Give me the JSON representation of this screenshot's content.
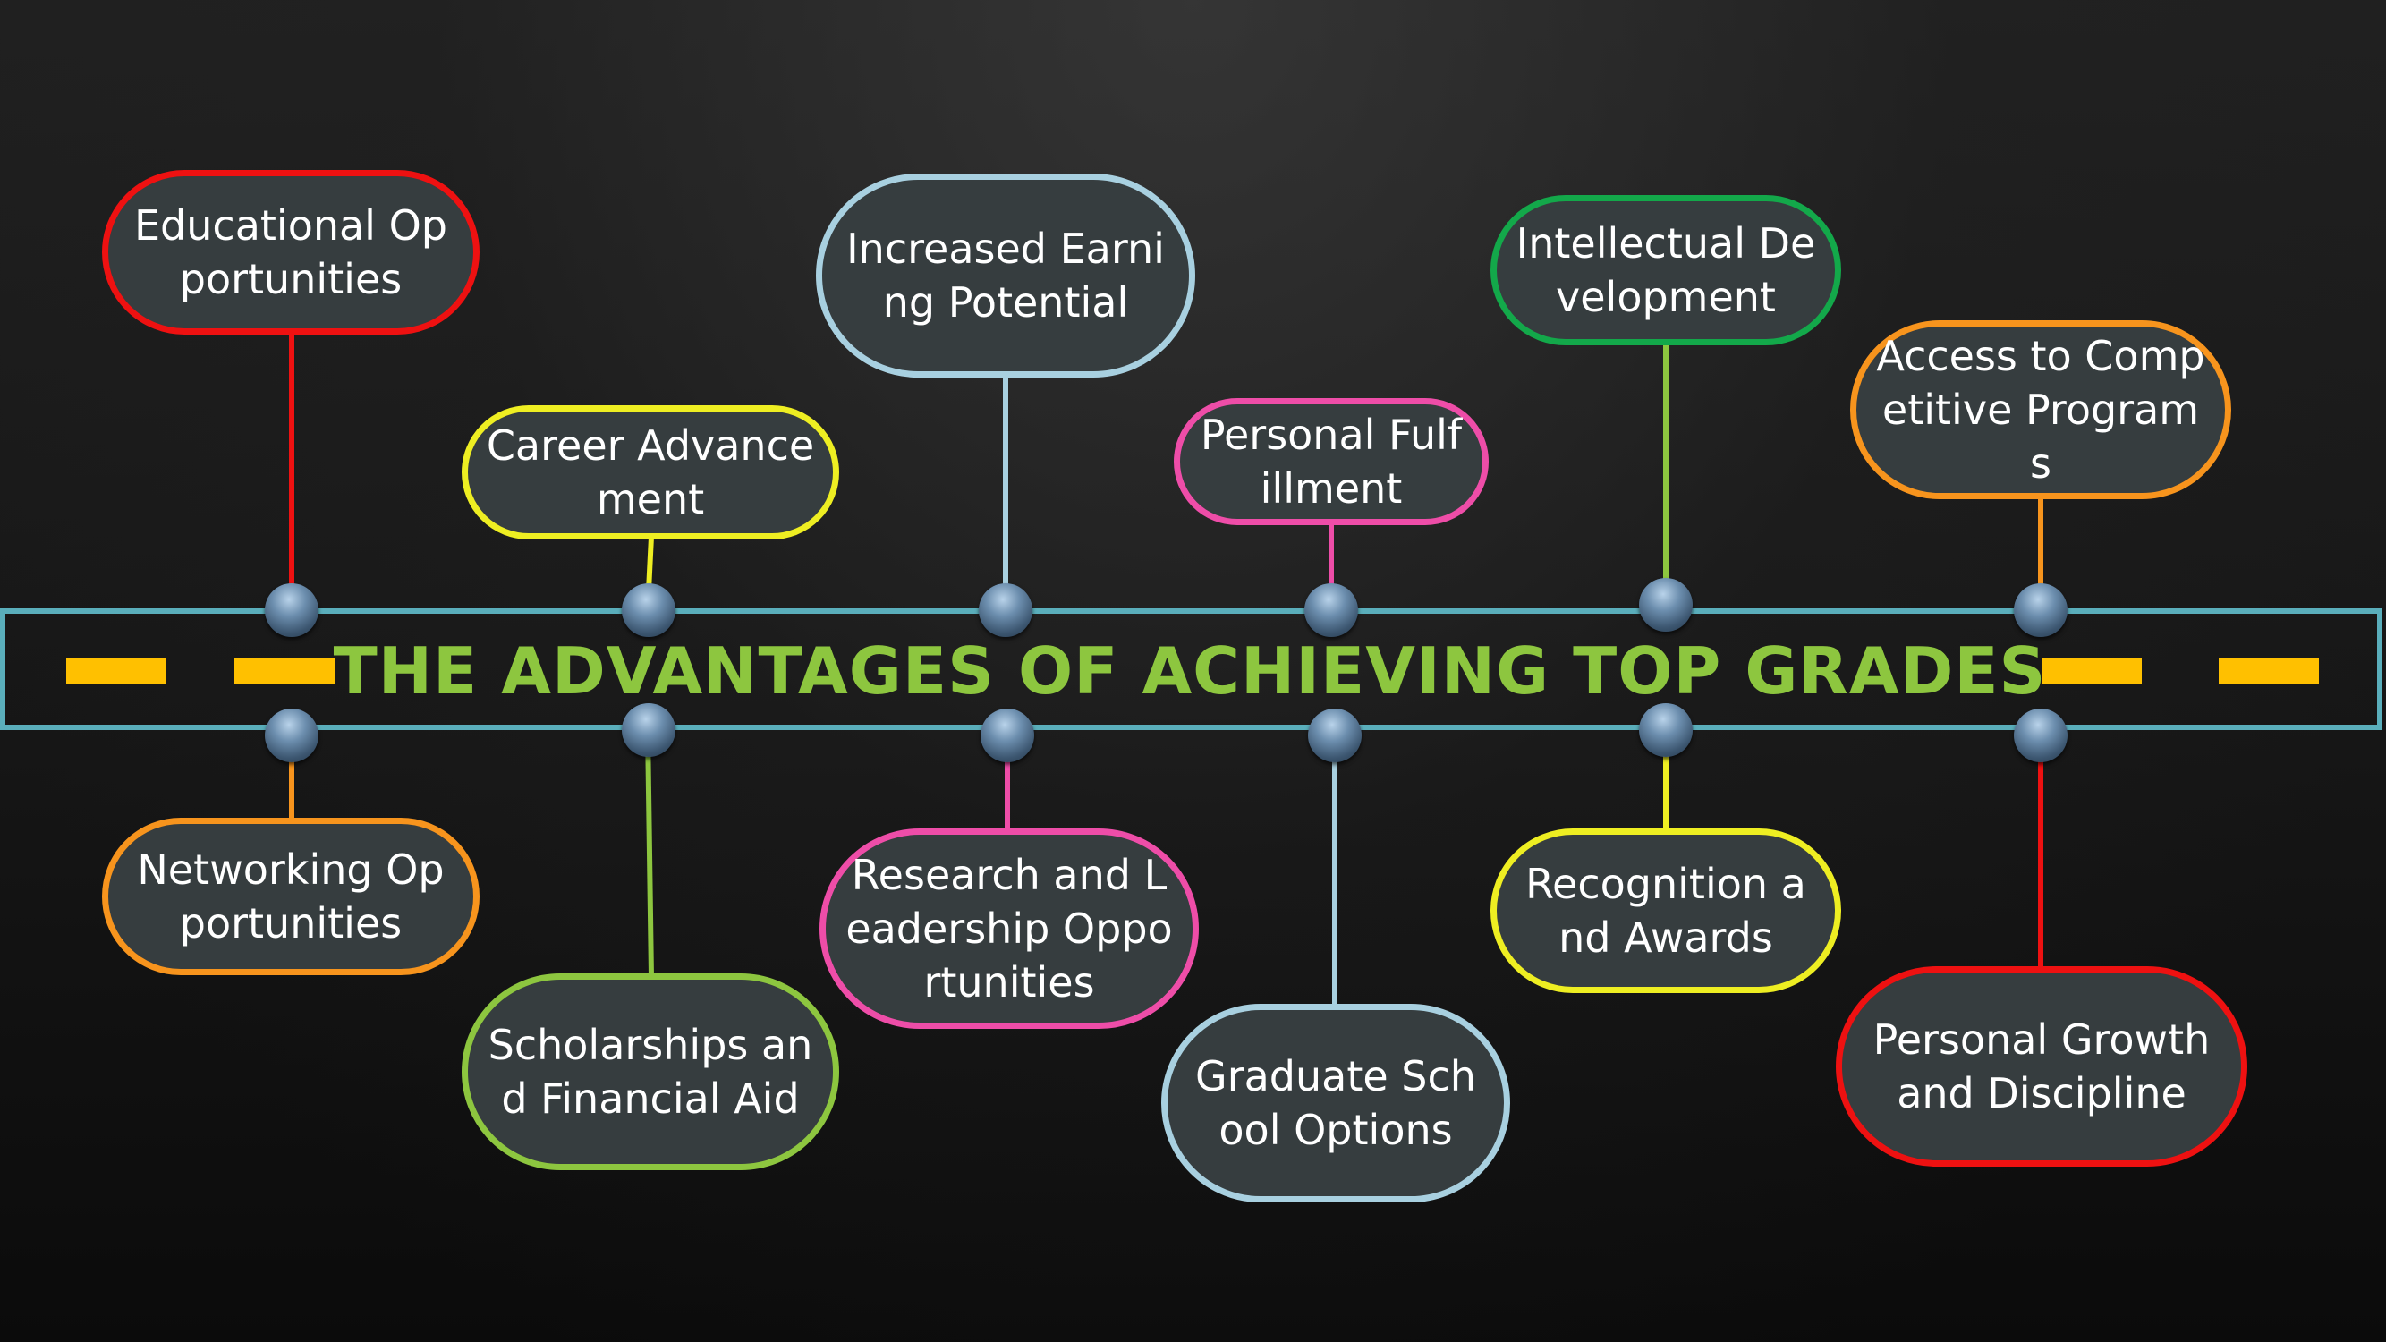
{
  "title": "THE ADVANTAGES OF ACHIEVING TOP GRADES",
  "colors": {
    "background": "#141414",
    "node_fill": "#363d3f",
    "band_border": "#5aaebb",
    "title_text": "#8dc63f",
    "dash": "#ffc000",
    "red": "#ee1111",
    "yellow": "#eeee22",
    "light_blue": "#a8d0e0",
    "pink": "#ee4da8",
    "green": "#13a84a",
    "orange": "#f7941d",
    "lime": "#8dc63f"
  },
  "nodes_top": [
    {
      "label": "Educational Opportunities",
      "color": "#ee1111"
    },
    {
      "label": "Career Advancement",
      "color": "#eeee22"
    },
    {
      "label": "Increased Earning Potential",
      "color": "#a8d0e0"
    },
    {
      "label": "Personal Fulfillment",
      "color": "#ee4da8"
    },
    {
      "label": "Intellectual Development",
      "color": "#13a84a"
    },
    {
      "label": "Access to Competitive Programs",
      "color": "#f7941d"
    }
  ],
  "nodes_bottom": [
    {
      "label": "Networking Opportunities",
      "color": "#f7941d"
    },
    {
      "label": "Scholarships and Financial Aid",
      "color": "#8dc63f"
    },
    {
      "label": "Research and Leadership Opportunities",
      "color": "#ee4da8"
    },
    {
      "label": "Graduate School Options",
      "color": "#a8d0e0"
    },
    {
      "label": "Recognition and Awards",
      "color": "#eeee22"
    },
    {
      "label": "Personal Growth and Discipline",
      "color": "#ee1111"
    }
  ]
}
